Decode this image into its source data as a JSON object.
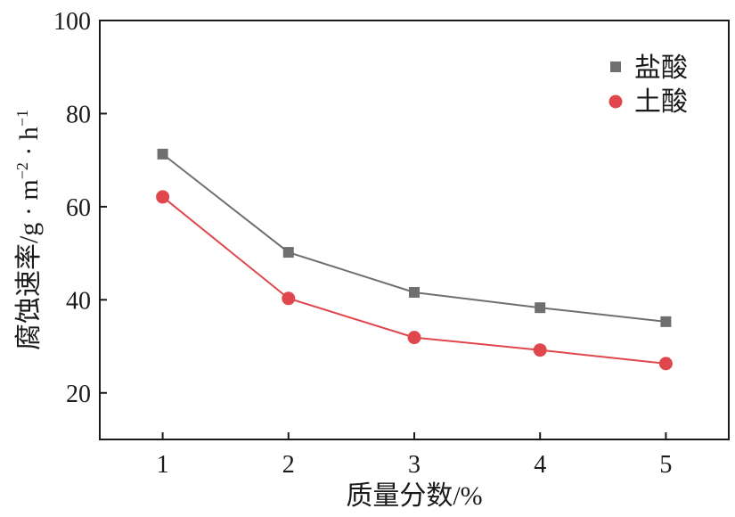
{
  "chart_data": {
    "type": "line",
    "x": [
      1,
      2,
      3,
      4,
      5
    ],
    "xlabel": "质量分数/%",
    "ylabel": "腐蚀速率/g · m",
    "ylabel_sup1": "−2",
    "ylabel_mid": " · h",
    "ylabel_sup2": "−1",
    "xlim": [
      0.5,
      5.5
    ],
    "ylim": [
      10,
      100
    ],
    "xticks": [
      1,
      2,
      3,
      4,
      5
    ],
    "yticks": [
      20,
      40,
      60,
      80,
      100
    ],
    "legend_position": "top-right",
    "grid": false,
    "series": [
      {
        "name": "盐酸",
        "marker": "square",
        "color": "#6f6f6f",
        "values": [
          71.3,
          50.2,
          41.6,
          38.3,
          35.3
        ]
      },
      {
        "name": "土酸",
        "marker": "circle",
        "color": "#e0474c",
        "values": [
          62.1,
          40.3,
          31.9,
          29.2,
          26.3
        ]
      }
    ]
  }
}
